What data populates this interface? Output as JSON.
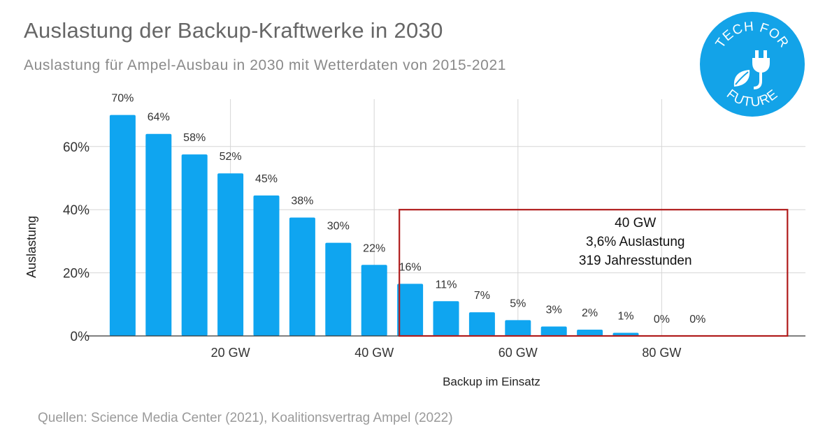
{
  "title": "Auslastung der Backup-Kraftwerke in 2030",
  "subtitle": "Auslastung für Ampel-Ausbau in 2030 mit Wetterdaten von 2015-2021",
  "source": "Quellen: Science Media Center (2021), Koalitionsvertrag Ampel (2022)",
  "logo": {
    "top_text": "TECH FOR",
    "bottom_text": "FUTURE",
    "color": "#13a3e8"
  },
  "annotation": {
    "lines": [
      "40 GW",
      "3,6% Auslastung",
      "319 Jahresstunden"
    ],
    "border_color": "#b01c1c",
    "x_start_gw": 43.5,
    "x_end_gw": 97.5,
    "y_top_pct": 40
  },
  "chart_data": {
    "type": "bar",
    "xlabel": "Backup im Einsatz",
    "ylabel": "Auslastung",
    "bar_color": "#0fa5f0",
    "x": [
      5,
      10,
      15,
      20,
      25,
      30,
      35,
      40,
      45,
      50,
      55,
      60,
      65,
      70,
      75,
      80,
      85
    ],
    "values": [
      70,
      64,
      57.5,
      51.5,
      44.5,
      37.5,
      29.5,
      22.5,
      16.5,
      11,
      7.5,
      5,
      3,
      2,
      1,
      0,
      0
    ],
    "labels": [
      "70%",
      "64%",
      "58%",
      "52%",
      "45%",
      "38%",
      "30%",
      "22%",
      "16%",
      "11%",
      "7%",
      "5%",
      "3%",
      "2%",
      "1%",
      "0%",
      "0%"
    ],
    "xlim": [
      0,
      100
    ],
    "ylim": [
      0,
      75
    ],
    "x_ticks": [
      20,
      40,
      60,
      80
    ],
    "x_tick_labels": [
      "20 GW",
      "40 GW",
      "60 GW",
      "80 GW"
    ],
    "y_ticks": [
      0,
      20,
      40,
      60
    ],
    "y_tick_labels": [
      "0%",
      "20%",
      "40%",
      "60%"
    ],
    "grid": true
  }
}
